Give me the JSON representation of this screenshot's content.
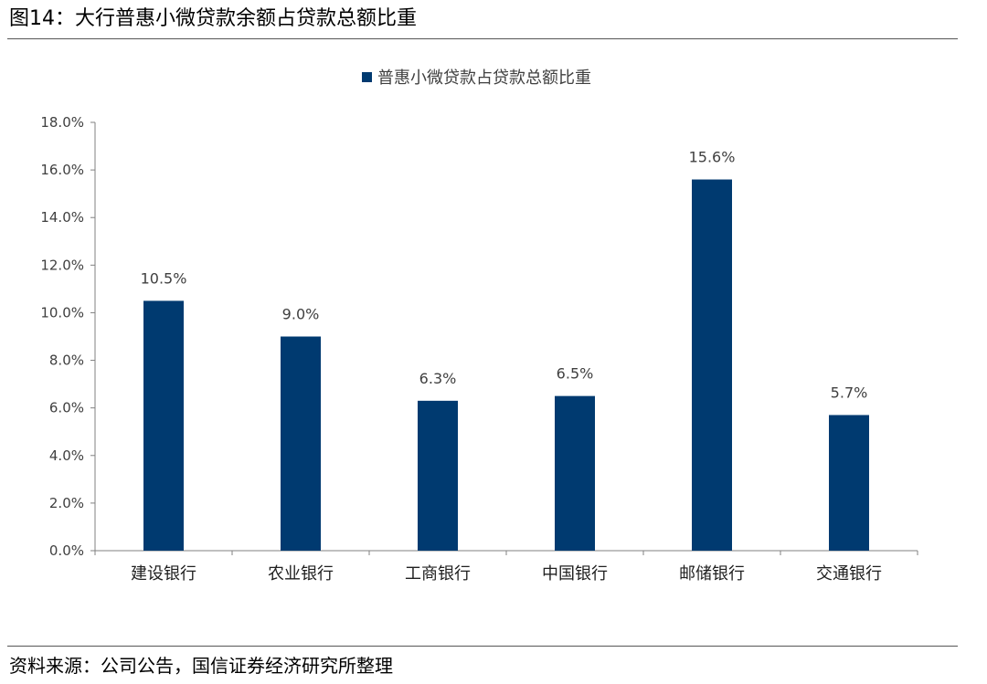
{
  "figure": {
    "title": "图14：大行普惠小微贷款余额占贷款总额比重",
    "source": "资料来源：公司公告，国信证券经济研究所整理"
  },
  "chart_data": {
    "type": "bar",
    "title": "",
    "xlabel": "",
    "ylabel": "",
    "categories": [
      "建设银行",
      "农业银行",
      "工商银行",
      "中国银行",
      "邮储银行",
      "交通银行"
    ],
    "series": [
      {
        "name": "普惠小微贷款占贷款总额比重",
        "values": [
          10.5,
          9.0,
          6.3,
          6.5,
          15.6,
          5.7
        ],
        "data_labels": [
          "10.5%",
          "9.0%",
          "6.3%",
          "6.5%",
          "15.6%",
          "5.7%"
        ],
        "color": "#003A70"
      }
    ],
    "ylim": [
      0,
      18
    ],
    "yticks": [
      "0.0%",
      "2.0%",
      "4.0%",
      "6.0%",
      "8.0%",
      "10.0%",
      "12.0%",
      "14.0%",
      "16.0%",
      "18.0%"
    ],
    "grid": false,
    "legend_position": "top-center"
  }
}
